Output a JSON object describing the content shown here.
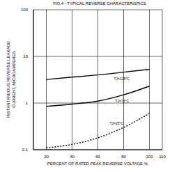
{
  "chart_data": {
    "type": "line",
    "title": "FIG.4 - TYPICAL REVERSE CHARACTERISTICS",
    "x_label": "PERCENT OF RATED PEAK REVERSE VOLTAGE,%",
    "y_label": [
      "INSTANTANEOUS REVERSE LEAKAGE",
      "CURRENT, MICROAMPERES"
    ],
    "x": [
      20,
      40,
      60,
      80,
      100
    ],
    "series": [
      {
        "name": "TJ=125°C",
        "color": "#000000",
        "line_style": "solid",
        "values": [
          3.2,
          3.6,
          4.0,
          4.6,
          5.3
        ]
      },
      {
        "name": "TJ=75°C",
        "color": "#000000",
        "line_style": "solid",
        "values": [
          0.85,
          0.95,
          1.1,
          1.5,
          2.3
        ]
      },
      {
        "name": "TJ=25°C",
        "color": "#000000",
        "line_style": "dashed",
        "values": [
          0.11,
          0.13,
          0.18,
          0.3,
          0.6
        ]
      }
    ],
    "xlim": [
      10,
      110
    ],
    "xticks": [
      20,
      40,
      60,
      80,
      100,
      110
    ],
    "ylim": [
      0.1,
      100
    ],
    "yticks": [
      0.1,
      1,
      10,
      100
    ],
    "log": "y",
    "grid": true
  }
}
